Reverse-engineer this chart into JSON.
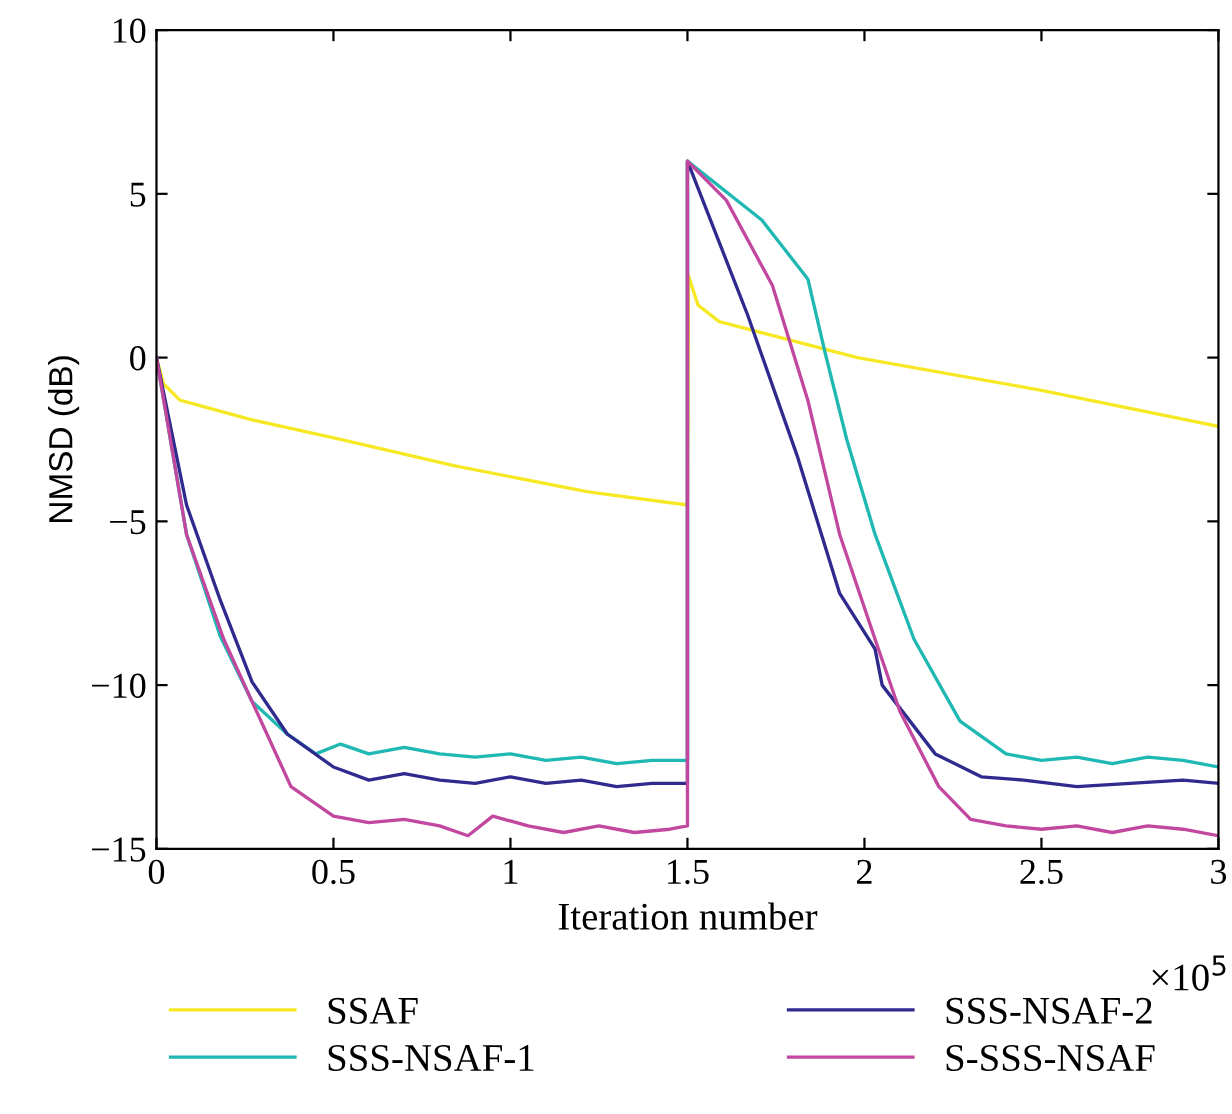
{
  "chart_data": {
    "type": "line",
    "xlabel": "Iteration number",
    "ylabel": "NMSD (dB)",
    "xlim": [
      0,
      3
    ],
    "xticks": [
      0,
      0.5,
      1,
      1.5,
      2,
      2.5,
      3
    ],
    "ylim": [
      -15,
      10
    ],
    "yticks": [
      -15,
      -10,
      -5,
      0,
      5,
      10
    ],
    "grid": false,
    "legend": "bottom",
    "marker": "none",
    "line_style": "solid",
    "annotations": [
      "×10$^{5}$"
    ],
    "series": [
      {
        "name": "SSAF",
        "color": "#f7e826",
        "x": [
          0,
          0.02,
          0.066,
          0.27,
          0.52,
          0.84,
          1.22,
          1.5,
          1.503,
          1.53,
          1.59,
          1.98,
          2.5,
          3.0
        ],
        "values": [
          0,
          -0.8,
          -1.3,
          -1.9,
          -2.5,
          -3.3,
          -4.1,
          -4.5,
          2.5,
          1.6,
          1.1,
          0,
          -1.0,
          -2.1
        ]
      },
      {
        "name": "SSS-NSAF-1",
        "color": "#1fb8b2",
        "x": [
          0,
          0.085,
          0.18,
          0.27,
          0.37,
          0.45,
          0.52,
          0.6,
          0.7,
          0.8,
          0.9,
          1.0,
          1.1,
          1.2,
          1.3,
          1.4,
          1.5,
          1.5,
          1.71,
          1.84,
          1.89,
          1.95,
          2.03,
          2.14,
          2.27,
          2.4,
          2.5,
          2.6,
          2.7,
          2.8,
          2.9,
          3.0
        ],
        "values": [
          0,
          -5.4,
          -8.5,
          -10.5,
          -11.5,
          -12.1,
          -11.8,
          -12.1,
          -11.9,
          -12.1,
          -12.2,
          -12.1,
          -12.3,
          -12.2,
          -12.4,
          -12.3,
          -12.3,
          6.0,
          4.2,
          2.4,
          0.1,
          -2.5,
          -5.4,
          -8.6,
          -11.1,
          -12.1,
          -12.3,
          -12.2,
          -12.4,
          -12.2,
          -12.3,
          -12.5
        ]
      },
      {
        "name": "SSS-NSAF-2",
        "color": "#2f2a8e",
        "x": [
          0,
          0.085,
          0.18,
          0.27,
          0.37,
          0.5,
          0.6,
          0.7,
          0.8,
          0.9,
          1.0,
          1.1,
          1.2,
          1.3,
          1.4,
          1.5,
          1.5,
          1.67,
          1.81,
          1.93,
          2.03,
          2.05,
          2.2,
          2.33,
          2.45,
          2.6,
          2.75,
          2.9,
          3.0
        ],
        "values": [
          0,
          -4.5,
          -7.4,
          -9.9,
          -11.5,
          -12.5,
          -12.9,
          -12.7,
          -12.9,
          -13.0,
          -12.8,
          -13.0,
          -12.9,
          -13.1,
          -13.0,
          -13.0,
          6.0,
          1.3,
          -3.0,
          -7.2,
          -8.9,
          -10.0,
          -12.1,
          -12.8,
          -12.9,
          -13.1,
          -13.0,
          -12.9,
          -13.0
        ]
      },
      {
        "name": "S-SSS-NSAF",
        "color": "#c2479f",
        "x": [
          0,
          0.085,
          0.19,
          0.27,
          0.38,
          0.5,
          0.6,
          0.7,
          0.8,
          0.88,
          0.95,
          1.05,
          1.15,
          1.25,
          1.35,
          1.45,
          1.5,
          1.5,
          1.61,
          1.74,
          1.84,
          1.93,
          2.03,
          2.1,
          2.21,
          2.3,
          2.4,
          2.5,
          2.6,
          2.7,
          2.8,
          2.9,
          3.0
        ],
        "values": [
          0,
          -5.4,
          -8.6,
          -10.5,
          -13.1,
          -14.0,
          -14.2,
          -14.1,
          -14.3,
          -14.6,
          -14.0,
          -14.3,
          -14.5,
          -14.3,
          -14.5,
          -14.4,
          -14.3,
          6.0,
          4.8,
          2.2,
          -1.3,
          -5.4,
          -8.6,
          -10.8,
          -13.1,
          -14.1,
          -14.3,
          -14.4,
          -14.3,
          -14.5,
          -14.3,
          -14.4,
          -14.6
        ]
      }
    ]
  }
}
